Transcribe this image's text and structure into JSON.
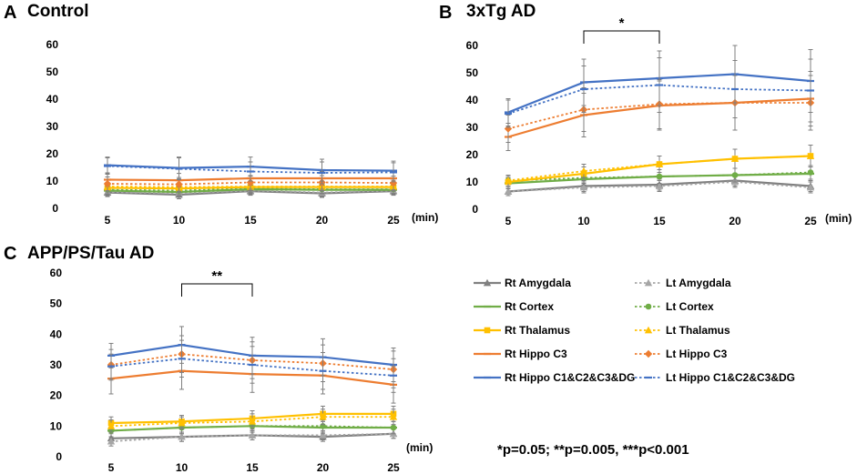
{
  "footnote": "*p=0.05; **p=0.005, ***p<0.001",
  "legend": [
    {
      "name": "Rt Amygdala",
      "color": "#808080",
      "dashed": false,
      "marker": "triangle"
    },
    {
      "name": "Lt Amygdala",
      "color": "#a6a6a6",
      "dashed": true,
      "marker": "triangle"
    },
    {
      "name": "Rt Cortex",
      "color": "#70ad47",
      "dashed": false,
      "marker": "dash"
    },
    {
      "name": "Lt Cortex",
      "color": "#70ad47",
      "dashed": true,
      "marker": "circle"
    },
    {
      "name": "Rt Thalamus",
      "color": "#ffc000",
      "dashed": false,
      "marker": "square"
    },
    {
      "name": "Lt Thalamus",
      "color": "#ffc000",
      "dashed": true,
      "marker": "triangle"
    },
    {
      "name": "Rt Hippo C3",
      "color": "#ed7d31",
      "dashed": false,
      "marker": "dash"
    },
    {
      "name": "Lt Hippo C3",
      "color": "#ed7d31",
      "dashed": true,
      "marker": "diamond"
    },
    {
      "name": "Rt Hippo C1&C2&C3&DG",
      "color": "#4472c4",
      "dashed": false,
      "marker": "dash"
    },
    {
      "name": "Lt Hippo C1&C2&C3&DG",
      "color": "#4472c4",
      "dashed": true,
      "marker": "dash"
    }
  ],
  "chart_data": [
    {
      "panel": "A",
      "title": "Control",
      "type": "line",
      "x": [
        5,
        10,
        15,
        20,
        25
      ],
      "x_unit": "(min)",
      "ylim": [
        0,
        60
      ],
      "yticks": [
        0,
        10,
        20,
        30,
        40,
        50,
        60
      ],
      "significance": null,
      "series": [
        {
          "name": "Rt Amygdala",
          "values": [
            5.8,
            5.0,
            6.3,
            5.5,
            6.3
          ],
          "err": [
            1.5,
            1.5,
            1.5,
            1.5,
            1.5
          ]
        },
        {
          "name": "Lt Amygdala",
          "values": [
            6.0,
            5.5,
            6.5,
            5.8,
            6.5
          ],
          "err": [
            1.5,
            1.5,
            1.5,
            1.5,
            1.5
          ]
        },
        {
          "name": "Rt Cortex",
          "values": [
            6.5,
            6.0,
            7.0,
            6.8,
            6.8
          ],
          "err": [
            1.5,
            1.5,
            1.5,
            1.5,
            1.5
          ]
        },
        {
          "name": "Lt Cortex",
          "values": [
            6.8,
            6.5,
            7.3,
            7.0,
            7.0
          ],
          "err": [
            1.5,
            1.5,
            1.5,
            1.5,
            1.5
          ]
        },
        {
          "name": "Rt Thalamus",
          "values": [
            7.5,
            7.3,
            7.8,
            7.8,
            7.8
          ],
          "err": [
            1.5,
            1.5,
            1.5,
            1.5,
            1.5
          ]
        },
        {
          "name": "Lt Thalamus",
          "values": [
            8.0,
            7.8,
            8.0,
            8.0,
            8.0
          ],
          "err": [
            1.5,
            1.5,
            1.5,
            1.5,
            1.5
          ]
        },
        {
          "name": "Rt Hippo C3",
          "values": [
            10.5,
            10.3,
            11.0,
            11.0,
            11.0
          ],
          "err": [
            2.5,
            2.5,
            2.5,
            2.5,
            2.5
          ]
        },
        {
          "name": "Lt Hippo C3",
          "values": [
            9.0,
            8.8,
            9.5,
            9.5,
            9.3
          ],
          "err": [
            2.5,
            2.5,
            2.5,
            2.5,
            2.5
          ]
        },
        {
          "name": "Rt Hippo C1&C2&C3&DG",
          "values": [
            15.8,
            14.8,
            15.3,
            14.0,
            13.8
          ],
          "err": [
            3.0,
            4.0,
            3.5,
            4.0,
            3.5
          ]
        },
        {
          "name": "Lt Hippo C1&C2&C3&DG",
          "values": [
            15.5,
            14.5,
            13.5,
            13.0,
            13.2
          ],
          "err": [
            3.0,
            4.0,
            3.5,
            4.0,
            3.5
          ]
        }
      ]
    },
    {
      "panel": "B",
      "title": "3xTg AD",
      "type": "line",
      "x": [
        5,
        10,
        15,
        20,
        25
      ],
      "x_unit": "(min)",
      "ylim": [
        0,
        60
      ],
      "yticks": [
        0,
        10,
        20,
        30,
        40,
        50,
        60
      ],
      "significance": {
        "label": "*",
        "from": 10,
        "to": 15
      },
      "series": [
        {
          "name": "Rt Amygdala",
          "values": [
            6.5,
            8.5,
            9.0,
            10.5,
            8.5
          ],
          "err": [
            1.5,
            2.0,
            2.0,
            2.0,
            2.0
          ]
        },
        {
          "name": "Lt Amygdala",
          "values": [
            6.5,
            8.0,
            8.5,
            10.0,
            8.0
          ],
          "err": [
            1.5,
            2.0,
            2.0,
            2.0,
            2.0
          ]
        },
        {
          "name": "Rt Cortex",
          "values": [
            9.5,
            11.0,
            12.0,
            12.5,
            13.0
          ],
          "err": [
            2.0,
            2.0,
            2.5,
            2.5,
            2.5
          ]
        },
        {
          "name": "Lt Cortex",
          "values": [
            10.5,
            11.5,
            12.0,
            12.5,
            13.5
          ],
          "err": [
            2.0,
            2.0,
            2.5,
            2.5,
            2.5
          ]
        },
        {
          "name": "Rt Thalamus",
          "values": [
            10.0,
            13.0,
            16.5,
            18.5,
            19.5
          ],
          "err": [
            2.0,
            2.5,
            3.0,
            3.5,
            4.0
          ]
        },
        {
          "name": "Lt Thalamus",
          "values": [
            10.5,
            14.0,
            16.5,
            18.5,
            19.5
          ],
          "err": [
            2.0,
            2.5,
            3.0,
            3.5,
            4.0
          ]
        },
        {
          "name": "Rt Hippo C3",
          "values": [
            26.5,
            34.5,
            38.0,
            39.0,
            40.5
          ],
          "err": [
            5.0,
            8.0,
            9.0,
            10.0,
            10.0
          ]
        },
        {
          "name": "Lt Hippo C3",
          "values": [
            29.5,
            36.5,
            38.5,
            39.0,
            39.0
          ],
          "err": [
            5.0,
            8.0,
            9.0,
            10.0,
            10.0
          ]
        },
        {
          "name": "Rt Hippo C1&C2&C3&DG",
          "values": [
            35.5,
            46.5,
            48.0,
            49.5,
            47.0
          ],
          "err": [
            5.0,
            8.5,
            10.0,
            10.5,
            11.5
          ]
        },
        {
          "name": "Lt Hippo C1&C2&C3&DG",
          "values": [
            35.0,
            44.0,
            45.5,
            44.0,
            43.5
          ],
          "err": [
            5.0,
            8.5,
            10.0,
            10.5,
            11.5
          ]
        }
      ]
    },
    {
      "panel": "C",
      "title": "APP/PS/Tau AD",
      "type": "line",
      "x": [
        5,
        10,
        15,
        20,
        25
      ],
      "x_unit": "(min)",
      "ylim": [
        0,
        60
      ],
      "yticks": [
        0,
        10,
        20,
        30,
        40,
        50,
        60
      ],
      "significance": {
        "label": "**",
        "from": 10,
        "to": 15
      },
      "series": [
        {
          "name": "Rt Amygdala",
          "values": [
            6.0,
            6.5,
            7.0,
            6.5,
            7.5
          ],
          "err": [
            1.5,
            1.5,
            1.5,
            1.5,
            1.5
          ]
        },
        {
          "name": "Lt Amygdala",
          "values": [
            5.0,
            6.5,
            7.0,
            7.0,
            7.5
          ],
          "err": [
            1.5,
            1.5,
            1.5,
            1.5,
            1.5
          ]
        },
        {
          "name": "Rt Cortex",
          "values": [
            8.5,
            9.5,
            10.0,
            9.5,
            9.5
          ],
          "err": [
            2.0,
            2.0,
            2.0,
            2.0,
            2.0
          ]
        },
        {
          "name": "Lt Cortex",
          "values": [
            8.5,
            9.5,
            10.0,
            10.0,
            9.5
          ],
          "err": [
            2.0,
            2.0,
            2.0,
            2.0,
            2.0
          ]
        },
        {
          "name": "Rt Thalamus",
          "values": [
            11.0,
            11.5,
            12.5,
            14.0,
            14.0
          ],
          "err": [
            2.0,
            2.0,
            2.5,
            2.5,
            2.5
          ]
        },
        {
          "name": "Lt Thalamus",
          "values": [
            10.0,
            11.0,
            11.5,
            13.0,
            13.0
          ],
          "err": [
            2.0,
            2.0,
            2.5,
            2.5,
            2.5
          ]
        },
        {
          "name": "Rt Hippo C3",
          "values": [
            25.5,
            28.0,
            27.0,
            26.5,
            23.5
          ],
          "err": [
            5.0,
            6.0,
            6.0,
            6.0,
            6.0
          ]
        },
        {
          "name": "Lt Hippo C3",
          "values": [
            30.0,
            33.5,
            31.5,
            30.5,
            28.5
          ],
          "err": [
            5.0,
            6.0,
            6.0,
            6.0,
            6.0
          ]
        },
        {
          "name": "Rt Hippo C1&C2&C3&DG",
          "values": [
            33.0,
            36.5,
            33.0,
            32.5,
            30.0
          ],
          "err": [
            4.0,
            6.0,
            6.0,
            6.0,
            5.5
          ]
        },
        {
          "name": "Lt Hippo C1&C2&C3&DG",
          "values": [
            29.5,
            32.0,
            30.0,
            28.0,
            26.5
          ],
          "err": [
            4.0,
            6.0,
            6.0,
            6.0,
            5.5
          ]
        }
      ]
    }
  ]
}
